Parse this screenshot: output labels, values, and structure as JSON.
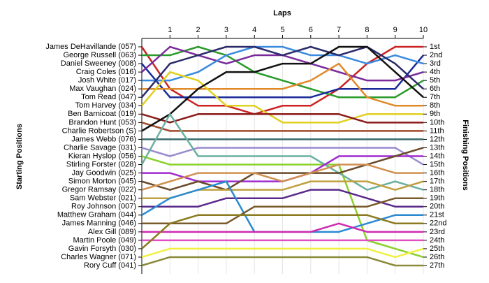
{
  "chart_data": {
    "type": "bump",
    "x_label": "Laps",
    "y_label": "Starting Positions",
    "y2_label": "Finishing Positions",
    "x": [
      0,
      1,
      2,
      3,
      4,
      5,
      6,
      7,
      8,
      9,
      10
    ],
    "xlim": [
      0,
      10
    ],
    "xticks": [
      1,
      2,
      3,
      4,
      5,
      6,
      7,
      8,
      9,
      10
    ],
    "ylim": [
      1,
      27
    ],
    "y_inverted": true,
    "y2ticks": [
      {
        "value": 1,
        "label": "1st"
      },
      {
        "value": 2,
        "label": "2nd"
      },
      {
        "value": 3,
        "label": "3rd"
      },
      {
        "value": 4,
        "label": "4th"
      },
      {
        "value": 5,
        "label": "5th"
      },
      {
        "value": 6,
        "label": "6th"
      },
      {
        "value": 7,
        "label": "7th"
      },
      {
        "value": 8,
        "label": "8th"
      },
      {
        "value": 9,
        "label": "9th"
      },
      {
        "value": 10,
        "label": "10th"
      },
      {
        "value": 11,
        "label": "11th"
      },
      {
        "value": 12,
        "label": "12th"
      },
      {
        "value": 13,
        "label": "13th"
      },
      {
        "value": 14,
        "label": "14th"
      },
      {
        "value": 15,
        "label": "15th"
      },
      {
        "value": 16,
        "label": "16th"
      },
      {
        "value": 17,
        "label": "17th"
      },
      {
        "value": 18,
        "label": "18th"
      },
      {
        "value": 19,
        "label": "19th"
      },
      {
        "value": 20,
        "label": "20th"
      },
      {
        "value": 21,
        "label": "21st"
      },
      {
        "value": 22,
        "label": "22nd"
      },
      {
        "value": 23,
        "label": "23rd"
      },
      {
        "value": 24,
        "label": "24th"
      },
      {
        "value": 25,
        "label": "25th"
      },
      {
        "value": 26,
        "label": "26th"
      },
      {
        "value": 27,
        "label": "27th"
      }
    ],
    "series": [
      {
        "name": "James DeHavillande (057)",
        "color": "#cc2222",
        "values": [
          1,
          6,
          8,
          8,
          9,
          8,
          8,
          6,
          3,
          1,
          1
        ]
      },
      {
        "name": "George Russell (063)",
        "color": "#2a9a2a",
        "values": [
          2,
          2,
          1,
          2,
          4,
          5,
          6,
          7,
          7,
          7,
          5
        ]
      },
      {
        "name": "Daniel Sweeney (008)",
        "color": "#1a2a9a",
        "values": [
          3,
          7,
          7,
          7,
          7,
          7,
          7,
          6,
          6,
          6,
          2
        ]
      },
      {
        "name": "Craig Coles (016)",
        "color": "#7a2a9a",
        "values": [
          4,
          1,
          2,
          3,
          2,
          2,
          3,
          4,
          5,
          5,
          4
        ]
      },
      {
        "name": "Josh White (017)",
        "color": "#3a8ae0",
        "values": [
          5,
          5,
          4,
          2,
          1,
          1,
          2,
          2,
          3,
          2,
          3
        ]
      },
      {
        "name": "Max Vaughan (024)",
        "color": "#e08a2a",
        "values": [
          6,
          6,
          6,
          6,
          6,
          6,
          5,
          3,
          7,
          8,
          8
        ]
      },
      {
        "name": "Tom Read (047)",
        "color": "#2a2a6a",
        "values": [
          7,
          3,
          2,
          1,
          1,
          2,
          1,
          2,
          1,
          3,
          6
        ]
      },
      {
        "name": "Tom Harvey (034)",
        "color": "#e0d020",
        "values": [
          8,
          4,
          5,
          8,
          8,
          10,
          10,
          10,
          9,
          9,
          9
        ]
      },
      {
        "name": "Ben Barnicoat (019)",
        "color": "#8a1a1a",
        "values": [
          9,
          10,
          9,
          9,
          9,
          9,
          9,
          9,
          10,
          10,
          10
        ]
      },
      {
        "name": "Brandon Hunt (053)",
        "color": "#a04a2a",
        "values": [
          10,
          11,
          11,
          11,
          11,
          11,
          11,
          11,
          11,
          11,
          11
        ]
      },
      {
        "name": "Charlie Robertson (S)",
        "color": "#111111",
        "values": [
          11,
          9,
          6,
          4,
          4,
          3,
          3,
          1,
          1,
          4,
          7
        ]
      },
      {
        "name": "James Webb (076)",
        "color": "#3a6a6a",
        "values": [
          12,
          12,
          12,
          12,
          12,
          12,
          12,
          12,
          12,
          12,
          12
        ]
      },
      {
        "name": "Charlie Savage (031)",
        "color": "#9a8ad0",
        "values": [
          13,
          14,
          13,
          13,
          13,
          13,
          13,
          13,
          13,
          13,
          15
        ]
      },
      {
        "name": "Kieran Hyslop (056)",
        "color": "#8ad02a",
        "values": [
          14,
          15,
          15,
          15,
          15,
          15,
          15,
          15,
          24,
          25,
          26
        ]
      },
      {
        "name": "Stirling Forster (028)",
        "color": "#6ab0a0",
        "values": [
          15,
          9,
          14,
          14,
          14,
          14,
          14,
          16,
          18,
          17,
          18
        ]
      },
      {
        "name": "Jay Goodwin (025)",
        "color": "#a02ad0",
        "values": [
          16,
          16,
          17,
          17,
          17,
          17,
          16,
          14,
          14,
          14,
          14
        ]
      },
      {
        "name": "Simon Morton (045)",
        "color": "#6a4a2a",
        "values": [
          17,
          18,
          17,
          18,
          16,
          16,
          16,
          16,
          15,
          14,
          13
        ]
      },
      {
        "name": "Gregor Ramsay (022)",
        "color": "#d09050",
        "values": [
          18,
          17,
          16,
          16,
          16,
          17,
          16,
          15,
          15,
          16,
          16
        ]
      },
      {
        "name": "Sam Webster (021)",
        "color": "#c0a040",
        "values": [
          19,
          19,
          18,
          18,
          18,
          18,
          17,
          17,
          17,
          18,
          17
        ]
      },
      {
        "name": "Roy Johnson (007)",
        "color": "#5a2a8a",
        "values": [
          20,
          20,
          20,
          19,
          19,
          19,
          18,
          18,
          19,
          20,
          20
        ]
      },
      {
        "name": "Matthew Graham (044)",
        "color": "#2a8ad0",
        "values": [
          21,
          19,
          18,
          17,
          23,
          23,
          23,
          23,
          22,
          21,
          21
        ]
      },
      {
        "name": "James Manning (046)",
        "color": "#7a5a2a",
        "values": [
          22,
          22,
          22,
          22,
          20,
          20,
          20,
          20,
          20,
          19,
          19
        ]
      },
      {
        "name": "Alex Gill (089)",
        "color": "#d02ab0",
        "values": [
          23,
          23,
          23,
          23,
          23,
          23,
          23,
          22,
          23,
          23,
          23
        ]
      },
      {
        "name": "Martin Poole (049)",
        "color": "#e050c0",
        "values": [
          24,
          24,
          24,
          24,
          24,
          24,
          24,
          24,
          24,
          24,
          24
        ]
      },
      {
        "name": "Gavin Forsyth (030)",
        "color": "#8a7a20",
        "values": [
          25,
          22,
          21,
          21,
          21,
          21,
          21,
          21,
          21,
          22,
          22
        ]
      },
      {
        "name": "Charles Wagner (071)",
        "color": "#f0f040",
        "values": [
          26,
          25,
          25,
          25,
          25,
          25,
          25,
          25,
          25,
          26,
          25
        ]
      },
      {
        "name": "Rory Cuff (041)",
        "color": "#8a8a3a",
        "values": [
          27,
          26,
          26,
          26,
          26,
          26,
          26,
          26,
          26,
          27,
          27
        ]
      }
    ]
  }
}
